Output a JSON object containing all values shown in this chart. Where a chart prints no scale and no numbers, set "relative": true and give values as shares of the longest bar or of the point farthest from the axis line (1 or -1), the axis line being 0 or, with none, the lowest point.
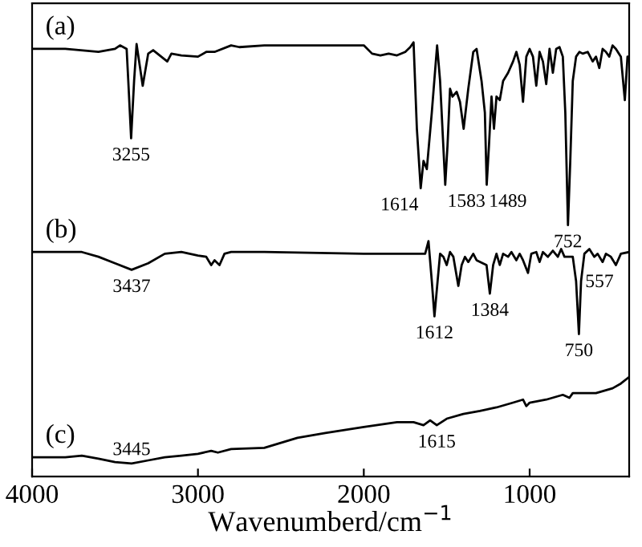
{
  "chart_data": {
    "type": "line",
    "relative": true,
    "xlabel": "Wavenumberd/cm$^{−1}$",
    "xlim": [
      4000,
      400
    ],
    "xticks": [
      4000,
      3000,
      2000,
      1000
    ],
    "tick_labels": "x",
    "grid": false,
    "legend": false,
    "marker": "none",
    "line_style": "solid",
    "series": [
      {
        "name": "(a)",
        "color": "#000000",
        "x": [
          4000,
          3800,
          3600,
          3500,
          3470,
          3430,
          3420,
          3403,
          3385,
          3370,
          3333,
          3300,
          3270,
          3185,
          3160,
          3100,
          3000,
          2950,
          2900,
          2800,
          2750,
          2600,
          2400,
          2000,
          1950,
          1900,
          1850,
          1800,
          1750,
          1720,
          1700,
          1680,
          1657,
          1640,
          1620,
          1590,
          1558,
          1540,
          1509,
          1495,
          1480,
          1465,
          1440,
          1420,
          1398,
          1370,
          1340,
          1320,
          1290,
          1270,
          1259,
          1245,
          1230,
          1215,
          1200,
          1180,
          1160,
          1130,
          1100,
          1080,
          1060,
          1040,
          1020,
          1000,
          980,
          960,
          940,
          920,
          900,
          880,
          860,
          840,
          820,
          800,
          785,
          769,
          755,
          740,
          720,
          700,
          680,
          650,
          620,
          600,
          580,
          560,
          540,
          520,
          500,
          480,
          450,
          426,
          410,
          400
        ],
        "values": [
          0.985,
          0.985,
          0.978,
          0.985,
          0.993,
          0.985,
          0.911,
          0.779,
          0.911,
          0.996,
          0.9,
          0.974,
          0.982,
          0.956,
          0.974,
          0.97,
          0.967,
          0.978,
          0.978,
          0.993,
          0.989,
          0.993,
          0.993,
          0.993,
          0.974,
          0.97,
          0.974,
          0.97,
          0.978,
          0.989,
          1.0,
          0.801,
          0.664,
          0.727,
          0.708,
          0.838,
          0.993,
          0.911,
          0.672,
          0.764,
          0.893,
          0.875,
          0.886,
          0.863,
          0.801,
          0.893,
          0.978,
          0.985,
          0.911,
          0.838,
          0.672,
          0.764,
          0.875,
          0.801,
          0.875,
          0.867,
          0.911,
          0.93,
          0.956,
          0.978,
          0.948,
          0.863,
          0.967,
          0.985,
          0.967,
          0.9,
          0.978,
          0.956,
          0.904,
          0.985,
          0.93,
          0.985,
          0.989,
          0.967,
          0.838,
          0.579,
          0.727,
          0.911,
          0.967,
          0.978,
          0.974,
          0.978,
          0.956,
          0.967,
          0.941,
          0.985,
          0.978,
          0.967,
          0.993,
          0.985,
          0.967,
          0.867,
          0.967,
          0.967
        ]
      },
      {
        "name": "(b)",
        "color": "#000000",
        "x": [
          4000,
          3800,
          3700,
          3600,
          3500,
          3400,
          3300,
          3200,
          3100,
          3050,
          3000,
          2950,
          2920,
          2900,
          2870,
          2840,
          2800,
          2600,
          2000,
          1700,
          1630,
          1610,
          1590,
          1574,
          1555,
          1540,
          1520,
          1500,
          1480,
          1460,
          1430,
          1410,
          1390,
          1370,
          1340,
          1320,
          1260,
          1240,
          1220,
          1200,
          1180,
          1160,
          1130,
          1110,
          1080,
          1060,
          1040,
          1010,
          990,
          960,
          940,
          920,
          890,
          860,
          830,
          810,
          790,
          740,
          720,
          703,
          690,
          670,
          640,
          610,
          590,
          560,
          540,
          510,
          480,
          450,
          400
        ],
        "values": [
          0.517,
          0.517,
          0.517,
          0.506,
          0.491,
          0.476,
          0.491,
          0.513,
          0.517,
          0.513,
          0.509,
          0.506,
          0.487,
          0.498,
          0.487,
          0.513,
          0.517,
          0.517,
          0.513,
          0.513,
          0.513,
          0.542,
          0.45,
          0.369,
          0.45,
          0.513,
          0.506,
          0.487,
          0.517,
          0.506,
          0.439,
          0.487,
          0.506,
          0.494,
          0.513,
          0.498,
          0.487,
          0.421,
          0.487,
          0.513,
          0.487,
          0.513,
          0.506,
          0.517,
          0.498,
          0.513,
          0.498,
          0.469,
          0.513,
          0.517,
          0.494,
          0.517,
          0.506,
          0.52,
          0.506,
          0.524,
          0.506,
          0.506,
          0.45,
          0.328,
          0.45,
          0.513,
          0.524,
          0.506,
          0.513,
          0.494,
          0.513,
          0.506,
          0.487,
          0.513,
          0.517
        ]
      },
      {
        "name": "(c)",
        "color": "#000000",
        "x": [
          4000,
          3800,
          3700,
          3600,
          3500,
          3400,
          3300,
          3200,
          3100,
          3000,
          2920,
          2880,
          2800,
          2600,
          2400,
          2232,
          2000,
          1800,
          1700,
          1640,
          1600,
          1560,
          1500,
          1400,
          1300,
          1200,
          1100,
          1040,
          1020,
          1000,
          900,
          800,
          760,
          740,
          600,
          500,
          450,
          400
        ],
        "values": [
          0.044,
          0.044,
          0.048,
          0.041,
          0.033,
          0.03,
          0.037,
          0.044,
          0.048,
          0.052,
          0.059,
          0.055,
          0.063,
          0.066,
          0.089,
          0.1,
          0.114,
          0.125,
          0.125,
          0.118,
          0.129,
          0.118,
          0.133,
          0.144,
          0.151,
          0.159,
          0.17,
          0.177,
          0.162,
          0.17,
          0.177,
          0.188,
          0.181,
          0.192,
          0.192,
          0.203,
          0.214,
          0.229
        ]
      }
    ],
    "annotations": [
      {
        "text": "3255",
        "x": 3403,
        "y": 0.779
      },
      {
        "text": "1614",
        "x": 1657,
        "y": 0.664
      },
      {
        "text": "1583",
        "x": 1509,
        "y": 0.672
      },
      {
        "text": "1489",
        "x": 1259,
        "y": 0.672
      },
      {
        "text": "752",
        "x": 769,
        "y": 0.579
      },
      {
        "text": "3437",
        "x": 3400,
        "y": 0.476
      },
      {
        "text": "1612",
        "x": 1574,
        "y": 0.369
      },
      {
        "text": "1384",
        "x": 1240,
        "y": 0.421
      },
      {
        "text": "750",
        "x": 703,
        "y": 0.328
      },
      {
        "text": "557",
        "x": 480,
        "y": 0.487
      },
      {
        "text": "3445",
        "x": 3400,
        "y": 0.03
      },
      {
        "text": "1615",
        "x": 1560,
        "y": 0.118
      }
    ]
  }
}
